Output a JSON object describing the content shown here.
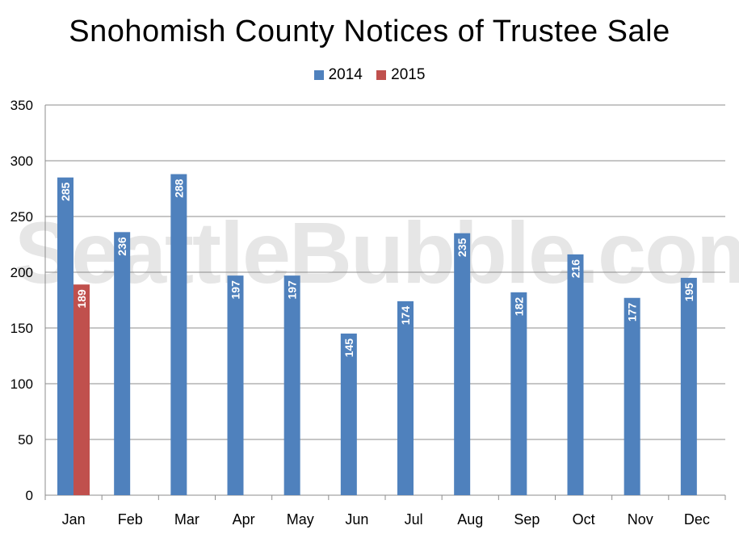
{
  "chart_data": {
    "type": "bar",
    "title": "Snohomish County Notices of Trustee Sale",
    "categories": [
      "Jan",
      "Feb",
      "Mar",
      "Apr",
      "May",
      "Jun",
      "Jul",
      "Aug",
      "Sep",
      "Oct",
      "Nov",
      "Dec"
    ],
    "series": [
      {
        "name": "2014",
        "color": "#4f81bd",
        "values": [
          285,
          236,
          288,
          197,
          197,
          145,
          174,
          235,
          182,
          216,
          177,
          195
        ]
      },
      {
        "name": "2015",
        "color": "#c0504d",
        "values": [
          189,
          null,
          null,
          null,
          null,
          null,
          null,
          null,
          null,
          null,
          null,
          null
        ]
      }
    ],
    "ylim": [
      0,
      350
    ],
    "yticks": [
      0,
      50,
      100,
      150,
      200,
      250,
      300,
      350
    ],
    "grid": true,
    "legend": "top-center",
    "watermark": "SeattleBubble.com"
  }
}
